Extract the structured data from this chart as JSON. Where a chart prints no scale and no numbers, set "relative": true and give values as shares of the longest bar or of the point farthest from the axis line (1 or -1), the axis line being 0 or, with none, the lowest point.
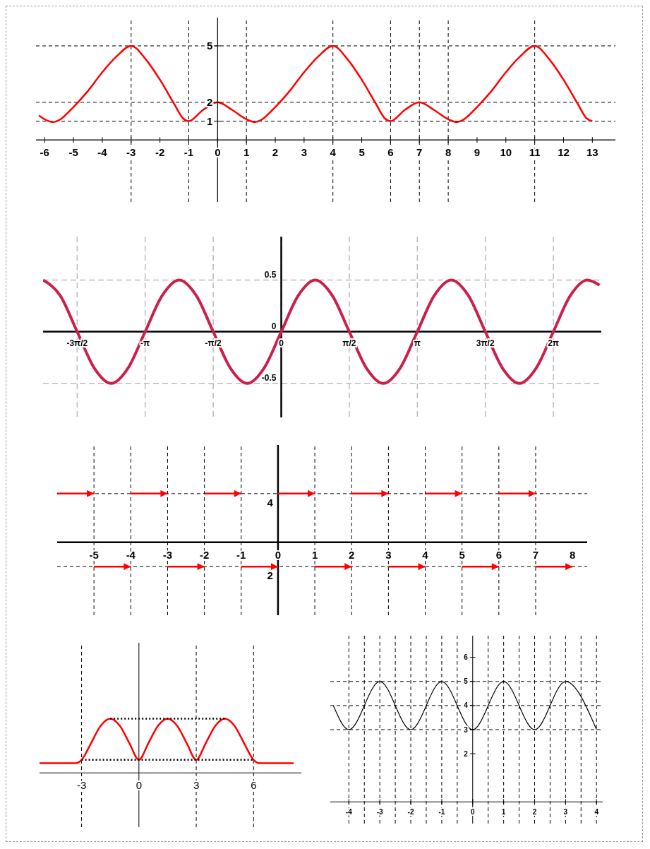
{
  "chart_data": [
    {
      "type": "line",
      "xlim": [
        -6.3,
        13.8
      ],
      "ylim": [
        -3.3,
        6.5
      ],
      "xticks": [
        -6,
        -5,
        -4,
        -3,
        -2,
        -1,
        0,
        1,
        2,
        3,
        4,
        5,
        6,
        7,
        8,
        9,
        10,
        11,
        12,
        13
      ],
      "yticks": [
        1,
        2,
        5
      ],
      "series": [
        {
          "color": "#ff0000",
          "x": [
            -6.2,
            -6,
            -5.7,
            -5.5,
            -5,
            -4.5,
            -4,
            -3.5,
            -3,
            -2.5,
            -2,
            -1.5,
            -1.2,
            -1,
            -0.5,
            0,
            0.5,
            1,
            1.3,
            1.5,
            2,
            2.5,
            3,
            3.5,
            4,
            4.5,
            5,
            5.5,
            5.8,
            6,
            6.5,
            7,
            7.5,
            8,
            8.3,
            8.5,
            9,
            9.5,
            10,
            10.5,
            11,
            11.5,
            12,
            12.5,
            12.8,
            13
          ],
          "values": [
            1.3,
            1.1,
            0.95,
            1.05,
            1.75,
            2.6,
            3.6,
            4.45,
            5,
            4.3,
            3.2,
            1.9,
            1.15,
            1,
            1.6,
            2,
            1.6,
            1.1,
            0.95,
            1.05,
            1.75,
            2.6,
            3.6,
            4.45,
            5,
            4.3,
            3.2,
            1.9,
            1.15,
            1,
            1.6,
            2,
            1.6,
            1.1,
            0.95,
            1.05,
            1.75,
            2.6,
            3.6,
            4.45,
            5,
            4.3,
            3.2,
            1.9,
            1.15,
            1
          ]
        }
      ],
      "ref_lines": [
        {
          "axis": "y",
          "value": 1,
          "color": "#000000",
          "line_style": "dashed"
        },
        {
          "axis": "y",
          "value": 2,
          "color": "#000000",
          "line_style": "dashed"
        },
        {
          "axis": "y",
          "value": 5,
          "color": "#000000",
          "line_style": "dashed"
        },
        {
          "axis": "x",
          "value": -3,
          "color": "#000000",
          "line_style": "dashed"
        },
        {
          "axis": "x",
          "value": -1,
          "color": "#000000",
          "line_style": "dashed"
        },
        {
          "axis": "x",
          "value": 1,
          "color": "#000000",
          "line_style": "dashed"
        },
        {
          "axis": "x",
          "value": 4,
          "color": "#000000",
          "line_style": "dashed"
        },
        {
          "axis": "x",
          "value": 6,
          "color": "#000000",
          "line_style": "dashed"
        },
        {
          "axis": "x",
          "value": 7,
          "color": "#000000",
          "line_style": "dashed"
        },
        {
          "axis": "x",
          "value": 8,
          "color": "#000000",
          "line_style": "dashed"
        },
        {
          "axis": "x",
          "value": 11,
          "color": "#000000",
          "line_style": "dashed"
        }
      ]
    },
    {
      "type": "line",
      "xlim": [
        -5.5,
        7.39
      ],
      "ylim": [
        -0.83,
        0.92
      ],
      "grid": true,
      "xticks": [
        {
          "value": -4.712,
          "label": "-3π/2"
        },
        {
          "value": -3.142,
          "label": "-π"
        },
        {
          "value": -1.571,
          "label": "-π/2"
        },
        0,
        {
          "value": 1.571,
          "label": "π/2"
        },
        {
          "value": 3.142,
          "label": "π"
        },
        {
          "value": 4.712,
          "label": "3π/2"
        },
        {
          "value": 6.283,
          "label": "2π"
        }
      ],
      "yticks": [
        0.5,
        0,
        -0.5
      ],
      "series": [
        {
          "color": "#cc1f4a",
          "x": [
            -5.498,
            -5.105,
            -4.712,
            -4.32,
            -3.927,
            -3.534,
            -3.142,
            -2.749,
            -2.356,
            -1.963,
            -1.571,
            -1.178,
            -0.785,
            -0.393,
            0,
            0.393,
            0.785,
            1.178,
            1.571,
            1.963,
            2.356,
            2.749,
            3.142,
            3.534,
            3.927,
            4.32,
            4.712,
            5.105,
            5.498,
            5.89,
            6.283,
            6.676,
            7.069,
            7.35
          ],
          "values": [
            0.5,
            0.35,
            0,
            -0.35,
            -0.5,
            -0.35,
            0,
            0.35,
            0.5,
            0.35,
            0,
            -0.35,
            -0.5,
            -0.35,
            0,
            0.35,
            0.5,
            0.35,
            0,
            -0.35,
            -0.5,
            -0.35,
            0,
            0.35,
            0.5,
            0.35,
            0,
            -0.35,
            -0.5,
            -0.35,
            0,
            0.35,
            0.5,
            0.45
          ]
        }
      ]
    },
    {
      "type": "step",
      "xlim": [
        -6,
        8.4
      ],
      "ylim": [
        -6,
        8
      ],
      "xticks": [
        -5,
        -4,
        -3,
        -2,
        -1,
        0,
        1,
        2,
        3,
        4,
        5,
        6,
        7,
        8
      ],
      "yticks": [
        4,
        {
          "value": -2,
          "label": "2"
        }
      ],
      "series": [
        {
          "color": "#ff0000",
          "x": [
            -6,
            -5
          ],
          "values": [
            4,
            4
          ]
        },
        {
          "color": "#ff0000",
          "x": [
            -5,
            -4
          ],
          "values": [
            -2,
            -2
          ]
        },
        {
          "color": "#ff0000",
          "x": [
            -4,
            -3
          ],
          "values": [
            4,
            4
          ]
        },
        {
          "color": "#ff0000",
          "x": [
            -3,
            -2
          ],
          "values": [
            -2,
            -2
          ]
        },
        {
          "color": "#ff0000",
          "x": [
            -2,
            -1
          ],
          "values": [
            4,
            4
          ]
        },
        {
          "color": "#ff0000",
          "x": [
            -1,
            0
          ],
          "values": [
            -2,
            -2
          ]
        },
        {
          "color": "#ff0000",
          "x": [
            0,
            1
          ],
          "values": [
            4,
            4
          ]
        },
        {
          "color": "#ff0000",
          "x": [
            1,
            2
          ],
          "values": [
            -2,
            -2
          ]
        },
        {
          "color": "#ff0000",
          "x": [
            2,
            3
          ],
          "values": [
            4,
            4
          ]
        },
        {
          "color": "#ff0000",
          "x": [
            3,
            4
          ],
          "values": [
            -2,
            -2
          ]
        },
        {
          "color": "#ff0000",
          "x": [
            4,
            5
          ],
          "values": [
            4,
            4
          ]
        },
        {
          "color": "#ff0000",
          "x": [
            5,
            6
          ],
          "values": [
            -2,
            -2
          ]
        },
        {
          "color": "#ff0000",
          "x": [
            6,
            7
          ],
          "values": [
            4,
            4
          ]
        },
        {
          "color": "#ff0000",
          "x": [
            7,
            8
          ],
          "values": [
            -2,
            -2
          ]
        }
      ],
      "ref_lines": [
        {
          "axis": "y",
          "value": 4,
          "color": "#000000",
          "line_style": "dashed"
        },
        {
          "axis": "y",
          "value": -2,
          "color": "#000000",
          "line_style": "dashed"
        },
        {
          "axis": "x",
          "value": -5,
          "color": "#000000",
          "line_style": "dashed"
        },
        {
          "axis": "x",
          "value": -4,
          "color": "#000000",
          "line_style": "dashed"
        },
        {
          "axis": "x",
          "value": -3,
          "color": "#000000",
          "line_style": "dashed"
        },
        {
          "axis": "x",
          "value": -2,
          "color": "#000000",
          "line_style": "dashed"
        },
        {
          "axis": "x",
          "value": -1,
          "color": "#000000",
          "line_style": "dashed"
        },
        {
          "axis": "x",
          "value": 1,
          "color": "#000000",
          "line_style": "dashed"
        },
        {
          "axis": "x",
          "value": 2,
          "color": "#000000",
          "line_style": "dashed"
        },
        {
          "axis": "x",
          "value": 3,
          "color": "#000000",
          "line_style": "dashed"
        },
        {
          "axis": "x",
          "value": 4,
          "color": "#000000",
          "line_style": "dashed"
        },
        {
          "axis": "x",
          "value": 5,
          "color": "#000000",
          "line_style": "dashed"
        },
        {
          "axis": "x",
          "value": 6,
          "color": "#000000",
          "line_style": "dashed"
        },
        {
          "axis": "x",
          "value": 7,
          "color": "#000000",
          "line_style": "dashed"
        }
      ]
    },
    {
      "type": "line",
      "relative": true,
      "xlim": [
        -5.2,
        8.5
      ],
      "xticks": [
        -3,
        0,
        3,
        6
      ],
      "series": [
        {
          "color": "#ff0000",
          "x": [
            -5.2,
            -3.3,
            -3,
            -2.5,
            -2,
            -1.5,
            -1,
            -0.5,
            0,
            0.5,
            1,
            1.5,
            2,
            2.5,
            3,
            3.5,
            4,
            4.5,
            5,
            5.5,
            6,
            6.3,
            8.1
          ],
          "values": [
            0.18,
            0.18,
            0.24,
            0.55,
            0.87,
            1,
            0.87,
            0.55,
            0.24,
            0.55,
            0.87,
            1,
            0.87,
            0.55,
            0.24,
            0.55,
            0.87,
            1,
            0.87,
            0.55,
            0.24,
            0.18,
            0.18
          ]
        },
        {
          "type": "line",
          "color": "#000000",
          "line_style": "dotted",
          "x": [
            -1.5,
            4.5
          ],
          "values": [
            1,
            1
          ]
        },
        {
          "type": "line",
          "color": "#000000",
          "line_style": "dotted",
          "x": [
            -3,
            6
          ],
          "values": [
            0.24,
            0.24
          ]
        }
      ],
      "ref_lines": [
        {
          "axis": "x",
          "value": -3,
          "color": "#000000",
          "line_style": "dashed"
        },
        {
          "axis": "x",
          "value": 3,
          "color": "#000000",
          "line_style": "dashed"
        },
        {
          "axis": "x",
          "value": 6,
          "color": "#000000",
          "line_style": "dashed"
        }
      ]
    },
    {
      "type": "line",
      "xlim": [
        -4.6,
        4.2
      ],
      "ylim": [
        -0.9,
        6.9
      ],
      "xticks": [
        -4,
        -3,
        -2,
        -1,
        0,
        1,
        2,
        3,
        4
      ],
      "yticks": [
        2,
        3,
        4,
        5,
        6
      ],
      "series": [
        {
          "color": "#000000",
          "x": [
            -4.5,
            -4,
            -3,
            -2,
            -1,
            0,
            1,
            2,
            3,
            4
          ],
          "values": [
            4,
            3,
            5,
            3,
            5,
            3,
            5,
            3,
            5,
            3
          ]
        }
      ],
      "ref_lines": [
        {
          "axis": "y",
          "value": 3,
          "color": "#000000",
          "line_style": "dashed"
        },
        {
          "axis": "y",
          "value": 4,
          "color": "#000000",
          "line_style": "dashed"
        },
        {
          "axis": "y",
          "value": 5,
          "color": "#000000",
          "line_style": "dashed"
        },
        {
          "axis": "x",
          "value": -4,
          "color": "#000000",
          "line_style": "dashed"
        },
        {
          "axis": "x",
          "value": -3.5,
          "color": "#000000",
          "line_style": "dashed"
        },
        {
          "axis": "x",
          "value": -3,
          "color": "#000000",
          "line_style": "dashed"
        },
        {
          "axis": "x",
          "value": -2.5,
          "color": "#000000",
          "line_style": "dashed"
        },
        {
          "axis": "x",
          "value": -2,
          "color": "#000000",
          "line_style": "dashed"
        },
        {
          "axis": "x",
          "value": -1.5,
          "color": "#000000",
          "line_style": "dashed"
        },
        {
          "axis": "x",
          "value": -1,
          "color": "#000000",
          "line_style": "dashed"
        },
        {
          "axis": "x",
          "value": -0.5,
          "color": "#000000",
          "line_style": "dashed"
        },
        {
          "axis": "x",
          "value": 0.5,
          "color": "#000000",
          "line_style": "dashed"
        },
        {
          "axis": "x",
          "value": 1,
          "color": "#000000",
          "line_style": "dashed"
        },
        {
          "axis": "x",
          "value": 1.5,
          "color": "#000000",
          "line_style": "dashed"
        },
        {
          "axis": "x",
          "value": 2,
          "color": "#000000",
          "line_style": "dashed"
        },
        {
          "axis": "x",
          "value": 2.5,
          "color": "#000000",
          "line_style": "dashed"
        },
        {
          "axis": "x",
          "value": 3,
          "color": "#000000",
          "line_style": "dashed"
        },
        {
          "axis": "x",
          "value": 3.5,
          "color": "#000000",
          "line_style": "dashed"
        },
        {
          "axis": "x",
          "value": 4,
          "color": "#000000",
          "line_style": "dashed"
        }
      ]
    }
  ]
}
